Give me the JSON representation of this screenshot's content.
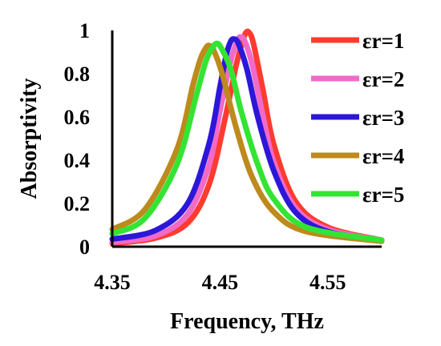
{
  "chart_data": {
    "type": "line",
    "title": "",
    "xlabel": "Frequency, THz",
    "ylabel": "Absorptivity",
    "xlim": [
      4.35,
      4.6
    ],
    "ylim": [
      0,
      1
    ],
    "x_ticks": [
      4.35,
      4.45,
      4.55
    ],
    "x_tick_labels": [
      "4.35",
      "4.45",
      "4.55"
    ],
    "y_ticks": [
      0,
      0.2,
      0.4,
      0.6,
      0.8,
      1
    ],
    "y_tick_labels": [
      "0",
      "0.2",
      "0.4",
      "0.6",
      "0.8",
      "1"
    ],
    "grid": false,
    "legend_position": "right",
    "series": [
      {
        "name": "εr=1",
        "color": "#FF3B2F",
        "points": [
          [
            4.35,
            0.015
          ],
          [
            4.39,
            0.04
          ],
          [
            4.42,
            0.11
          ],
          [
            4.44,
            0.29
          ],
          [
            4.455,
            0.6
          ],
          [
            4.465,
            0.84
          ],
          [
            4.471,
            0.95
          ],
          [
            4.474,
            0.99
          ],
          [
            4.477,
            0.99
          ],
          [
            4.481,
            0.94
          ],
          [
            4.49,
            0.72
          ],
          [
            4.5,
            0.47
          ],
          [
            4.52,
            0.21
          ],
          [
            4.55,
            0.09
          ],
          [
            4.6,
            0.03
          ]
        ]
      },
      {
        "name": "εr=2",
        "color": "#F06AC8",
        "points": [
          [
            4.35,
            0.02
          ],
          [
            4.39,
            0.05
          ],
          [
            4.42,
            0.15
          ],
          [
            4.44,
            0.38
          ],
          [
            4.45,
            0.63
          ],
          [
            4.46,
            0.86
          ],
          [
            4.466,
            0.95
          ],
          [
            4.469,
            0.97
          ],
          [
            4.473,
            0.95
          ],
          [
            4.48,
            0.84
          ],
          [
            4.49,
            0.6
          ],
          [
            4.5,
            0.39
          ],
          [
            4.52,
            0.18
          ],
          [
            4.55,
            0.08
          ],
          [
            4.6,
            0.03
          ]
        ]
      },
      {
        "name": "εr=3",
        "color": "#2C17D9",
        "points": [
          [
            4.35,
            0.035
          ],
          [
            4.39,
            0.075
          ],
          [
            4.42,
            0.2
          ],
          [
            4.44,
            0.48
          ],
          [
            4.45,
            0.74
          ],
          [
            4.456,
            0.89
          ],
          [
            4.46,
            0.95
          ],
          [
            4.463,
            0.96
          ],
          [
            4.467,
            0.94
          ],
          [
            4.475,
            0.82
          ],
          [
            4.485,
            0.6
          ],
          [
            4.5,
            0.35
          ],
          [
            4.52,
            0.16
          ],
          [
            4.55,
            0.07
          ],
          [
            4.6,
            0.03
          ]
        ]
      },
      {
        "name": "εr=4",
        "color": "#BD8A1C",
        "points": [
          [
            4.35,
            0.08
          ],
          [
            4.38,
            0.17
          ],
          [
            4.41,
            0.45
          ],
          [
            4.425,
            0.75
          ],
          [
            4.432,
            0.87
          ],
          [
            4.437,
            0.92
          ],
          [
            4.44,
            0.93
          ],
          [
            4.444,
            0.91
          ],
          [
            4.452,
            0.8
          ],
          [
            4.465,
            0.55
          ],
          [
            4.48,
            0.32
          ],
          [
            4.5,
            0.16
          ],
          [
            4.53,
            0.07
          ],
          [
            4.6,
            0.025
          ]
        ]
      },
      {
        "name": "εr=5",
        "color": "#33E433",
        "points": [
          [
            4.35,
            0.06
          ],
          [
            4.38,
            0.13
          ],
          [
            4.41,
            0.38
          ],
          [
            4.428,
            0.7
          ],
          [
            4.437,
            0.86
          ],
          [
            4.443,
            0.92
          ],
          [
            4.447,
            0.94
          ],
          [
            4.451,
            0.92
          ],
          [
            4.46,
            0.82
          ],
          [
            4.47,
            0.62
          ],
          [
            4.485,
            0.38
          ],
          [
            4.5,
            0.22
          ],
          [
            4.53,
            0.09
          ],
          [
            4.6,
            0.03
          ]
        ]
      }
    ]
  }
}
